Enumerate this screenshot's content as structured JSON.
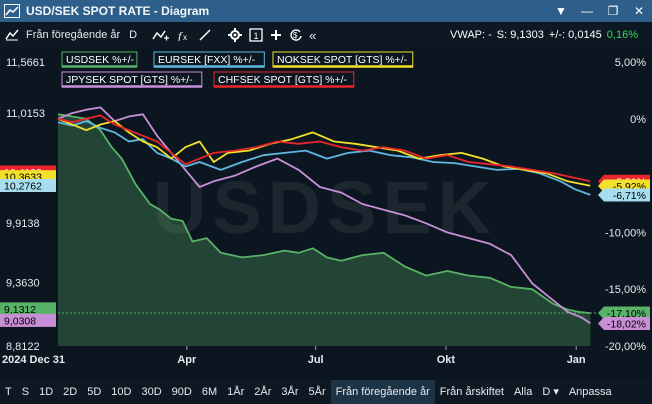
{
  "window": {
    "title": "USD/SEK SPOT RATE - Diagram",
    "buttons": [
      "▼",
      "—",
      "❐",
      "✕"
    ]
  },
  "toolbar": {
    "range_label": "Från föregående år",
    "d_label": "D",
    "collapse_label": "«",
    "vwap_label": "VWAP: -",
    "s_label": "S: 9,1303",
    "change_label": "+/-: 0,0145",
    "change_pct": "0,16%"
  },
  "chart_data": {
    "type": "line",
    "watermark": "USDSEK",
    "x_start_label": "2024 Dec 31",
    "x_labels": [
      {
        "label": "Apr",
        "t": 91
      },
      {
        "label": "Jul",
        "t": 182
      },
      {
        "label": "Okt",
        "t": 274
      },
      {
        "label": "Jan",
        "t": 366
      }
    ],
    "x_range": [
      0,
      380
    ],
    "left_axis": {
      "scale": "log",
      "range": [
        8.8122,
        11.5661
      ],
      "tick_labels": [
        "11,5661",
        "11,0153",
        "9,9138",
        "9,3630",
        "8,8122"
      ],
      "tick_values": [
        11.5661,
        11.0153,
        9.9138,
        9.363,
        8.8122
      ]
    },
    "right_axis": {
      "range": [
        -20,
        5
      ],
      "tick_labels": [
        "5,00%",
        "0%",
        "-10,00%",
        "-15,00%",
        "-20,00%"
      ],
      "tick_values": [
        5,
        0,
        -10,
        -15,
        -20
      ]
    },
    "legend": [
      {
        "label": "USDSEK %+/-",
        "color": "#58b368"
      },
      {
        "label": "EURSEK [FXX] %+/-",
        "color": "#5fb8e0"
      },
      {
        "label": "NOKSEK SPOT [GTS] %+/-",
        "color": "#f2e02a"
      },
      {
        "label": "JPYSEK SPOT [GTS] %+/-",
        "color": "#c98fd6"
      },
      {
        "label": "CHFSEK SPOT [GTS] %+/-",
        "color": "#e8262b"
      }
    ],
    "series": [
      {
        "name": "USDSEK %+/-",
        "color": "#58b368",
        "fill": true,
        "x": [
          0,
          10,
          20,
          30,
          38,
          45,
          55,
          65,
          72,
          80,
          88,
          95,
          105,
          115,
          130,
          145,
          160,
          170,
          180,
          190,
          200,
          215,
          230,
          245,
          260,
          275,
          290,
          305,
          320,
          335,
          350,
          360,
          368,
          376
        ],
        "y": [
          0.4,
          0.2,
          0.0,
          -1.0,
          -2.5,
          -3.5,
          -5.8,
          -7.5,
          -8.0,
          -8.8,
          -9.0,
          -10.8,
          -10.5,
          -11.8,
          -12.2,
          -12.0,
          -11.6,
          -11.8,
          -11.4,
          -12.2,
          -12.5,
          -12.0,
          -11.8,
          -13.0,
          -13.8,
          -13.4,
          -13.8,
          -14.0,
          -14.8,
          -15.0,
          -16.3,
          -16.8,
          -17.0,
          -17.1
        ]
      },
      {
        "name": "EURSEK [FXX] %+/-",
        "color": "#5fb8e0",
        "fill": false,
        "x": [
          0,
          10,
          20,
          30,
          40,
          50,
          60,
          70,
          80,
          90,
          100,
          115,
          130,
          145,
          160,
          175,
          190,
          205,
          220,
          235,
          250,
          265,
          280,
          295,
          310,
          325,
          340,
          355,
          365,
          376
        ],
        "y": [
          -0.3,
          -0.6,
          -0.2,
          -0.8,
          -1.2,
          -2.0,
          -1.8,
          -3.0,
          -3.5,
          -4.2,
          -3.8,
          -4.5,
          -3.8,
          -3.2,
          -3.0,
          -2.8,
          -3.5,
          -3.0,
          -2.8,
          -3.2,
          -3.4,
          -3.8,
          -3.9,
          -4.2,
          -4.5,
          -4.4,
          -4.8,
          -5.5,
          -6.2,
          -6.7
        ]
      },
      {
        "name": "NOKSEK SPOT [GTS] %+/-",
        "color": "#f2e02a",
        "fill": false,
        "x": [
          0,
          10,
          20,
          30,
          40,
          50,
          60,
          70,
          80,
          90,
          100,
          110,
          120,
          135,
          150,
          165,
          180,
          195,
          210,
          225,
          240,
          255,
          270,
          285,
          300,
          315,
          330,
          345,
          360,
          376
        ],
        "y": [
          0.0,
          -0.5,
          -1.0,
          -0.5,
          -0.2,
          -1.2,
          -2.0,
          -2.5,
          -3.5,
          -2.5,
          -2.0,
          -3.8,
          -3.0,
          -2.8,
          -2.2,
          -1.8,
          -1.2,
          -2.0,
          -2.2,
          -2.5,
          -2.8,
          -3.5,
          -3.2,
          -3.0,
          -3.5,
          -4.2,
          -4.5,
          -4.8,
          -5.5,
          -5.9
        ]
      },
      {
        "name": "JPYSEK SPOT [GTS] %+/-",
        "color": "#c98fd6",
        "fill": false,
        "x": [
          0,
          10,
          20,
          30,
          40,
          50,
          60,
          70,
          80,
          90,
          100,
          110,
          125,
          140,
          155,
          170,
          185,
          200,
          215,
          230,
          245,
          260,
          275,
          290,
          305,
          320,
          335,
          350,
          360,
          370,
          376
        ],
        "y": [
          0.0,
          0.5,
          0.8,
          1.0,
          -0.2,
          0.2,
          0.4,
          -1.5,
          -3.0,
          -4.5,
          -6.0,
          -5.5,
          -5.0,
          -4.2,
          -3.5,
          -4.5,
          -6.0,
          -6.5,
          -7.5,
          -8.0,
          -8.5,
          -9.2,
          -10.0,
          -10.5,
          -11.0,
          -12.0,
          -14.5,
          -16.0,
          -17.0,
          -17.5,
          -18.0
        ]
      },
      {
        "name": "CHFSEK SPOT [GTS] %+/-",
        "color": "#e8262b",
        "fill": false,
        "x": [
          0,
          10,
          20,
          30,
          40,
          50,
          60,
          70,
          80,
          90,
          100,
          110,
          125,
          140,
          155,
          170,
          185,
          200,
          215,
          230,
          245,
          260,
          275,
          290,
          305,
          320,
          335,
          350,
          365,
          376
        ],
        "y": [
          0.0,
          -0.3,
          0.0,
          0.3,
          -0.5,
          -1.0,
          -1.5,
          -2.0,
          -3.0,
          -4.0,
          -3.5,
          -3.0,
          -2.8,
          -2.5,
          -2.0,
          -2.2,
          -2.0,
          -2.5,
          -2.8,
          -2.5,
          -2.8,
          -3.5,
          -3.2,
          -3.8,
          -4.0,
          -4.2,
          -4.5,
          -4.8,
          -5.2,
          -5.5
        ]
      }
    ],
    "left_tags": [
      {
        "label": "10,4100",
        "value": 10.41,
        "color": "#e8262b",
        "text_color": "#ffffff"
      },
      {
        "label": "10,3633",
        "value": 10.3633,
        "color": "#f2e02a",
        "text_color": "#000000"
      },
      {
        "label": "10,2762",
        "value": 10.2762,
        "color": "#a8dcef",
        "text_color": "#000000"
      },
      {
        "label": "9,1312",
        "value": 9.1312,
        "color": "#58b368",
        "text_color": "#000000"
      },
      {
        "label": "9,0308",
        "value": 9.0308,
        "color": "#c98fd6",
        "text_color": "#000000"
      }
    ],
    "right_tags": [
      {
        "label": "-5,50%",
        "value": -5.5,
        "color": "#e8262b",
        "text_color": "#ffffff"
      },
      {
        "label": "-5,92%",
        "value": -5.92,
        "color": "#f2e02a",
        "text_color": "#000000"
      },
      {
        "label": "-6,71%",
        "value": -6.71,
        "color": "#a8dcef",
        "text_color": "#000000"
      },
      {
        "label": "-17,10%",
        "value": -17.1,
        "color": "#58b368",
        "text_color": "#000000"
      },
      {
        "label": "-18,02%",
        "value": -18.02,
        "color": "#c98fd6",
        "text_color": "#000000"
      }
    ],
    "reference_line": {
      "value": -17.1,
      "color": "#58b368"
    }
  },
  "periods": [
    "T",
    "S",
    "1D",
    "2D",
    "5D",
    "10D",
    "30D",
    "90D",
    "6M",
    "1År",
    "2År",
    "3År",
    "5År",
    "Från föregående år",
    "Från årskiftet",
    "Alla",
    "D ▾",
    "Anpassa"
  ],
  "selected_period": "Från föregående år",
  "colors": {
    "titlebar": "#2e5f8a",
    "background": "#0b1620",
    "accent_up": "#39d45a"
  }
}
